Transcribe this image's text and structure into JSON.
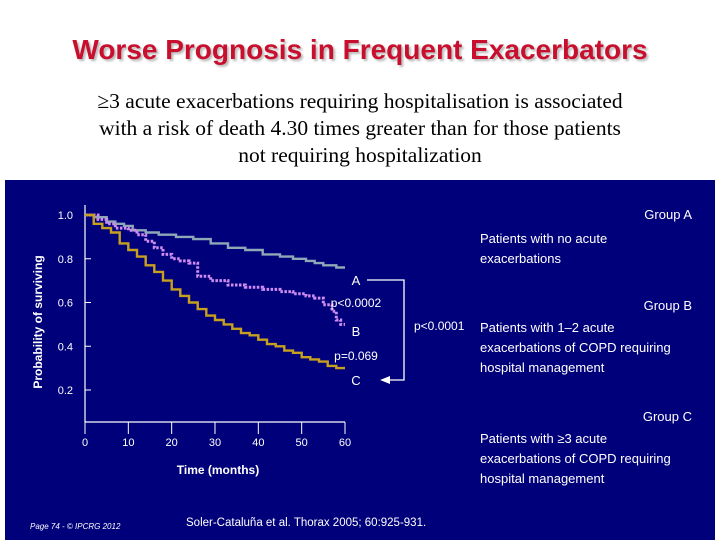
{
  "slide": {
    "title": "Worse Prognosis in Frequent Exacerbators",
    "subtitle_lines": [
      "≥3 acute exacerbations requiring hospitalisation is associated",
      "with a risk of death 4.30 times greater than for those patients",
      "not requiring hospitalization"
    ]
  },
  "legend": [
    {
      "heading": "Group A",
      "lines": [
        "Patients with no acute",
        "exacerbations"
      ]
    },
    {
      "heading": "Group B",
      "lines": [
        "Patients with 1–2 acute",
        "exacerbations of COPD requiring",
        "hospital management"
      ]
    },
    {
      "heading": "Group C",
      "lines": [
        "Patients with ≥3 acute",
        "exacerbations of COPD requiring",
        "hospital management"
      ]
    }
  ],
  "footer": {
    "page": "Page 74 - © IPCRG 2012",
    "citation": "Soler-Cataluña et al. Thorax 2005; 60:925-931."
  },
  "colors": {
    "panel": "#00007a",
    "title": "#c8102e",
    "group_a": "#8fa8b8",
    "group_b": "#d08cf0",
    "group_c": "#c8a020"
  },
  "chart_data": {
    "type": "line",
    "subtype": "kaplan-meier step",
    "xlabel": "Time (months)",
    "ylabel": "Probability of surviving",
    "x_ticks": [
      0,
      10,
      20,
      30,
      40,
      50,
      60
    ],
    "y_ticks": [
      "0.2",
      "0.4",
      "0.6",
      "0.8",
      "1.0"
    ],
    "y_tick_values": [
      0.2,
      0.4,
      0.6,
      0.8,
      1.0
    ],
    "xlim": [
      0,
      60
    ],
    "ylim": [
      0.2,
      1.0
    ],
    "grid": false,
    "series": [
      {
        "name": "A",
        "style": "solid",
        "color": "#8fa8b8",
        "x": [
          0,
          2,
          5,
          7,
          9,
          11,
          14,
          17,
          21,
          25,
          29,
          33,
          37,
          41,
          45,
          48,
          51,
          53,
          55,
          58,
          60
        ],
        "y": [
          1.0,
          0.99,
          0.97,
          0.96,
          0.95,
          0.93,
          0.92,
          0.91,
          0.9,
          0.89,
          0.87,
          0.85,
          0.84,
          0.82,
          0.81,
          0.8,
          0.79,
          0.78,
          0.77,
          0.76,
          0.76
        ]
      },
      {
        "name": "B",
        "style": "dotted",
        "color": "#d08cf0",
        "x": [
          0,
          3,
          5,
          7,
          10,
          12,
          14,
          16,
          18,
          20,
          22,
          24,
          26,
          29,
          33,
          37,
          41,
          45,
          48,
          51,
          53,
          55,
          57,
          58,
          59,
          60
        ],
        "y": [
          1.0,
          0.98,
          0.96,
          0.94,
          0.93,
          0.91,
          0.88,
          0.85,
          0.82,
          0.8,
          0.79,
          0.78,
          0.72,
          0.7,
          0.68,
          0.67,
          0.66,
          0.65,
          0.64,
          0.63,
          0.62,
          0.59,
          0.56,
          0.52,
          0.5,
          0.5
        ]
      },
      {
        "name": "C",
        "style": "solid",
        "color": "#c8a020",
        "x": [
          0,
          2,
          4,
          6,
          8,
          10,
          12,
          14,
          16,
          18,
          20,
          22,
          24,
          26,
          28,
          30,
          32,
          34,
          36,
          38,
          40,
          42,
          44,
          46,
          48,
          50,
          52,
          54,
          56,
          58,
          60
        ],
        "y": [
          1.0,
          0.96,
          0.94,
          0.92,
          0.87,
          0.84,
          0.81,
          0.77,
          0.74,
          0.7,
          0.66,
          0.63,
          0.6,
          0.57,
          0.54,
          0.52,
          0.5,
          0.48,
          0.46,
          0.45,
          0.43,
          0.41,
          0.4,
          0.38,
          0.37,
          0.35,
          0.34,
          0.33,
          0.31,
          0.3,
          0.3
        ]
      }
    ],
    "annotations": {
      "label_a": "A",
      "label_b": "B",
      "label_c": "C",
      "p_ab": "p<0.0002",
      "p_bc": "p=0.069",
      "p_ac": "p<0.0001"
    }
  }
}
